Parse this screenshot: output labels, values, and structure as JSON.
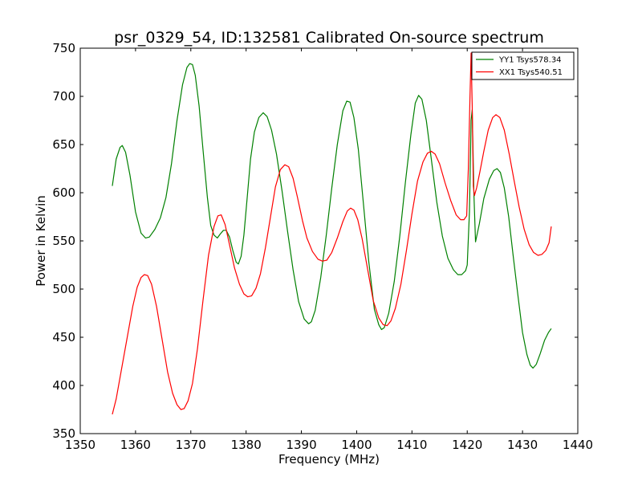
{
  "chart_data": {
    "type": "line",
    "title": "psr_0329_54, ID:132581 Calibrated On-source spectrum",
    "xlabel": "Frequency (MHz)",
    "ylabel": "Power in Kelvin",
    "xlim": [
      1350,
      1440
    ],
    "ylim": [
      350,
      750
    ],
    "xticks": [
      1350,
      1360,
      1370,
      1380,
      1390,
      1400,
      1410,
      1420,
      1430,
      1440
    ],
    "yticks": [
      350,
      400,
      450,
      500,
      550,
      600,
      650,
      700,
      750
    ],
    "grid": false,
    "legend_position": "top-right",
    "series": [
      {
        "name": "YY1 Tsys578.34",
        "color": "#008000",
        "points": [
          [
            1355.8,
            607
          ],
          [
            1356.5,
            635
          ],
          [
            1357.2,
            647
          ],
          [
            1357.6,
            649
          ],
          [
            1358.2,
            642
          ],
          [
            1359.0,
            618
          ],
          [
            1360.0,
            580
          ],
          [
            1361.0,
            558
          ],
          [
            1361.8,
            553
          ],
          [
            1362.5,
            554
          ],
          [
            1363.5,
            562
          ],
          [
            1364.5,
            574
          ],
          [
            1365.5,
            595
          ],
          [
            1366.5,
            630
          ],
          [
            1367.5,
            675
          ],
          [
            1368.5,
            712
          ],
          [
            1369.3,
            730
          ],
          [
            1369.8,
            734
          ],
          [
            1370.3,
            733
          ],
          [
            1370.8,
            722
          ],
          [
            1371.5,
            690
          ],
          [
            1372.2,
            645
          ],
          [
            1373.0,
            595
          ],
          [
            1373.6,
            566
          ],
          [
            1374.2,
            556
          ],
          [
            1374.8,
            553
          ],
          [
            1375.3,
            557
          ],
          [
            1375.9,
            561
          ],
          [
            1376.4,
            561
          ],
          [
            1377.0,
            554
          ],
          [
            1377.6,
            540
          ],
          [
            1378.2,
            528
          ],
          [
            1378.6,
            526
          ],
          [
            1379.1,
            534
          ],
          [
            1379.6,
            556
          ],
          [
            1380.2,
            595
          ],
          [
            1380.8,
            635
          ],
          [
            1381.5,
            663
          ],
          [
            1382.3,
            678
          ],
          [
            1383.1,
            683
          ],
          [
            1383.8,
            679
          ],
          [
            1384.6,
            665
          ],
          [
            1385.5,
            640
          ],
          [
            1386.5,
            602
          ],
          [
            1387.5,
            560
          ],
          [
            1388.5,
            520
          ],
          [
            1389.5,
            487
          ],
          [
            1390.5,
            469
          ],
          [
            1391.3,
            464
          ],
          [
            1391.8,
            466
          ],
          [
            1392.5,
            478
          ],
          [
            1393.5,
            512
          ],
          [
            1394.5,
            556
          ],
          [
            1395.5,
            605
          ],
          [
            1396.5,
            650
          ],
          [
            1397.5,
            685
          ],
          [
            1398.2,
            695
          ],
          [
            1398.8,
            694
          ],
          [
            1399.5,
            678
          ],
          [
            1400.3,
            645
          ],
          [
            1401.2,
            590
          ],
          [
            1402.2,
            528
          ],
          [
            1403.2,
            479
          ],
          [
            1404.0,
            463
          ],
          [
            1404.5,
            458
          ],
          [
            1405.0,
            460
          ],
          [
            1405.8,
            475
          ],
          [
            1406.8,
            508
          ],
          [
            1407.8,
            555
          ],
          [
            1408.8,
            610
          ],
          [
            1409.8,
            660
          ],
          [
            1410.6,
            693
          ],
          [
            1411.2,
            701
          ],
          [
            1411.8,
            697
          ],
          [
            1412.6,
            675
          ],
          [
            1413.5,
            635
          ],
          [
            1414.5,
            590
          ],
          [
            1415.5,
            555
          ],
          [
            1416.5,
            532
          ],
          [
            1417.5,
            520
          ],
          [
            1418.3,
            515
          ],
          [
            1419.0,
            515
          ],
          [
            1419.7,
            519
          ],
          [
            1420.0,
            525
          ],
          [
            1420.4,
            580
          ],
          [
            1420.7,
            675
          ],
          [
            1420.9,
            686
          ],
          [
            1421.2,
            600
          ],
          [
            1421.5,
            549
          ],
          [
            1422.2,
            568
          ],
          [
            1423.0,
            594
          ],
          [
            1424.0,
            614
          ],
          [
            1424.8,
            623
          ],
          [
            1425.4,
            625
          ],
          [
            1426.0,
            621
          ],
          [
            1426.7,
            605
          ],
          [
            1427.5,
            575
          ],
          [
            1428.3,
            535
          ],
          [
            1429.2,
            492
          ],
          [
            1430.0,
            455
          ],
          [
            1430.8,
            432
          ],
          [
            1431.4,
            421
          ],
          [
            1431.9,
            418
          ],
          [
            1432.5,
            422
          ],
          [
            1433.2,
            433
          ],
          [
            1434.0,
            447
          ],
          [
            1434.7,
            455
          ],
          [
            1435.2,
            459
          ]
        ]
      },
      {
        "name": "XX1 Tsys540.51",
        "color": "#ff0000",
        "points": [
          [
            1355.8,
            370
          ],
          [
            1356.5,
            386
          ],
          [
            1357.5,
            418
          ],
          [
            1358.5,
            450
          ],
          [
            1359.5,
            482
          ],
          [
            1360.3,
            502
          ],
          [
            1361.0,
            512
          ],
          [
            1361.6,
            515
          ],
          [
            1362.2,
            514
          ],
          [
            1362.9,
            505
          ],
          [
            1363.8,
            482
          ],
          [
            1364.8,
            448
          ],
          [
            1365.8,
            414
          ],
          [
            1366.7,
            392
          ],
          [
            1367.5,
            380
          ],
          [
            1368.2,
            375
          ],
          [
            1368.8,
            376
          ],
          [
            1369.5,
            384
          ],
          [
            1370.3,
            402
          ],
          [
            1371.2,
            438
          ],
          [
            1372.2,
            488
          ],
          [
            1373.2,
            535
          ],
          [
            1374.2,
            565
          ],
          [
            1374.9,
            576
          ],
          [
            1375.5,
            577
          ],
          [
            1376.2,
            567
          ],
          [
            1377.0,
            546
          ],
          [
            1377.9,
            522
          ],
          [
            1378.8,
            505
          ],
          [
            1379.6,
            495
          ],
          [
            1380.3,
            492
          ],
          [
            1381.0,
            493
          ],
          [
            1381.8,
            501
          ],
          [
            1382.6,
            516
          ],
          [
            1383.5,
            543
          ],
          [
            1384.5,
            578
          ],
          [
            1385.3,
            606
          ],
          [
            1386.2,
            624
          ],
          [
            1387.0,
            629
          ],
          [
            1387.7,
            627
          ],
          [
            1388.5,
            615
          ],
          [
            1389.3,
            595
          ],
          [
            1390.2,
            571
          ],
          [
            1391.0,
            553
          ],
          [
            1392.0,
            539
          ],
          [
            1393.0,
            531
          ],
          [
            1393.8,
            529
          ],
          [
            1394.6,
            530
          ],
          [
            1395.5,
            538
          ],
          [
            1396.5,
            553
          ],
          [
            1397.5,
            570
          ],
          [
            1398.3,
            581
          ],
          [
            1398.9,
            584
          ],
          [
            1399.5,
            582
          ],
          [
            1400.2,
            572
          ],
          [
            1401.0,
            552
          ],
          [
            1402.0,
            520
          ],
          [
            1403.0,
            488
          ],
          [
            1404.0,
            470
          ],
          [
            1404.8,
            463
          ],
          [
            1405.5,
            462
          ],
          [
            1406.2,
            467
          ],
          [
            1407.0,
            480
          ],
          [
            1408.0,
            505
          ],
          [
            1409.0,
            540
          ],
          [
            1410.0,
            578
          ],
          [
            1411.0,
            612
          ],
          [
            1412.0,
            632
          ],
          [
            1412.8,
            641
          ],
          [
            1413.5,
            643
          ],
          [
            1414.2,
            640
          ],
          [
            1415.0,
            630
          ],
          [
            1416.0,
            610
          ],
          [
            1417.0,
            592
          ],
          [
            1418.0,
            577
          ],
          [
            1418.8,
            572
          ],
          [
            1419.4,
            572
          ],
          [
            1419.9,
            576
          ],
          [
            1420.2,
            625
          ],
          [
            1420.5,
            700
          ],
          [
            1420.7,
            745
          ],
          [
            1420.9,
            690
          ],
          [
            1421.1,
            607
          ],
          [
            1421.3,
            597
          ],
          [
            1421.7,
            605
          ],
          [
            1422.3,
            622
          ],
          [
            1423.0,
            643
          ],
          [
            1423.8,
            665
          ],
          [
            1424.6,
            678
          ],
          [
            1425.2,
            681
          ],
          [
            1425.9,
            678
          ],
          [
            1426.7,
            665
          ],
          [
            1427.6,
            640
          ],
          [
            1428.5,
            612
          ],
          [
            1429.4,
            585
          ],
          [
            1430.3,
            562
          ],
          [
            1431.2,
            546
          ],
          [
            1432.0,
            538
          ],
          [
            1432.8,
            535
          ],
          [
            1433.5,
            536
          ],
          [
            1434.2,
            540
          ],
          [
            1434.8,
            548
          ],
          [
            1435.2,
            565
          ]
        ]
      }
    ]
  }
}
